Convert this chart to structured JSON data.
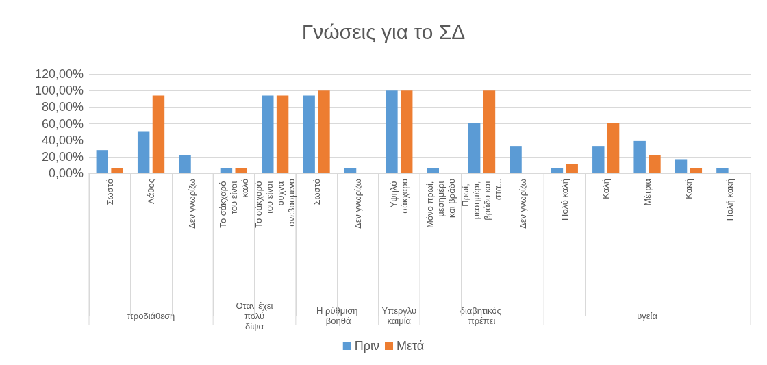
{
  "chart_data": {
    "type": "bar",
    "title": "Γνώσεις για το ΣΔ",
    "categories": [
      "Σωστό",
      "Λάθος",
      "Δεν γνωρίζω",
      "Το σάκχαρό του είναι καλό",
      "Το σάκχαρό του είναι συχνά ανεβασμένο",
      "Σωστό",
      "Δεν γνωρίζω",
      "Υψηλό σάκχαρο",
      "Μόνο πρωί, μεσημέρι και βράδυ",
      "Πρωί,  μεσημέρι, βράδυ και στα...",
      "Δεν γνωρίζω",
      "Πολύ καλή",
      "Καλή",
      "Μέτρια",
      "Κακή",
      "Πολή κακή"
    ],
    "series": [
      {
        "name": "Πριν",
        "color": "#5b9bd5",
        "values": [
          28,
          50,
          22,
          6,
          94,
          94,
          6,
          100,
          6,
          61,
          33,
          6,
          33,
          39,
          17,
          6
        ]
      },
      {
        "name": "Μετά",
        "color": "#ed7d31",
        "values": [
          6,
          94,
          null,
          6,
          94,
          100,
          null,
          100,
          null,
          100,
          null,
          11,
          61,
          22,
          6,
          null
        ]
      }
    ],
    "ylim": [
      0,
      120
    ],
    "yticks": [
      {
        "value": 0,
        "label": "0,00%"
      },
      {
        "value": 20,
        "label": "20,00%"
      },
      {
        "value": 40,
        "label": "40,00%"
      },
      {
        "value": 60,
        "label": "60,00%"
      },
      {
        "value": 80,
        "label": "80,00%"
      },
      {
        "value": 100,
        "label": "100,00%"
      },
      {
        "value": 120,
        "label": "120,00%"
      }
    ],
    "annotations": [
      "προδιάθεση",
      "Όταν έχει πολύ δίψα",
      "Η ρύθμιση βοηθά",
      "Υπεργλυκαιμία",
      "διαβητικός πρέπει",
      "υγεία"
    ],
    "grid": "y",
    "legend": "bottom"
  }
}
